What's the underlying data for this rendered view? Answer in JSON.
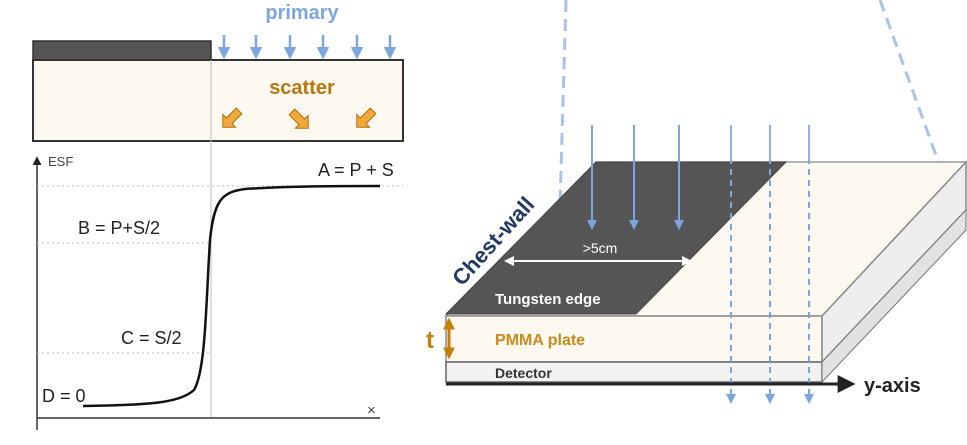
{
  "left_panel": {
    "primary_label": "primary",
    "scatter_label": "scatter",
    "esf_axis_label": "ESF",
    "x_axis_symbol": "×",
    "level_a": "A = P + S",
    "level_b": "B = P+S/2",
    "level_c": "C = S/2",
    "level_d": "D = 0"
  },
  "right_panel": {
    "chest_wall_label": "Chest-wall",
    "width_label": ">5cm",
    "tungsten_label": "Tungsten edge",
    "thickness_label": "t",
    "pmma_label": "PMMA plate",
    "detector_label": "Detector",
    "y_axis_label": "y-axis"
  },
  "colors": {
    "primary_blue": "#7ea6de",
    "scatter_orange": "#b9770e",
    "scatter_arrow": "#e8a02c",
    "tungsten_gray": "#555555",
    "pmma_fill": "#fdf9f1",
    "chest_wall_navy": "#1f3864"
  }
}
